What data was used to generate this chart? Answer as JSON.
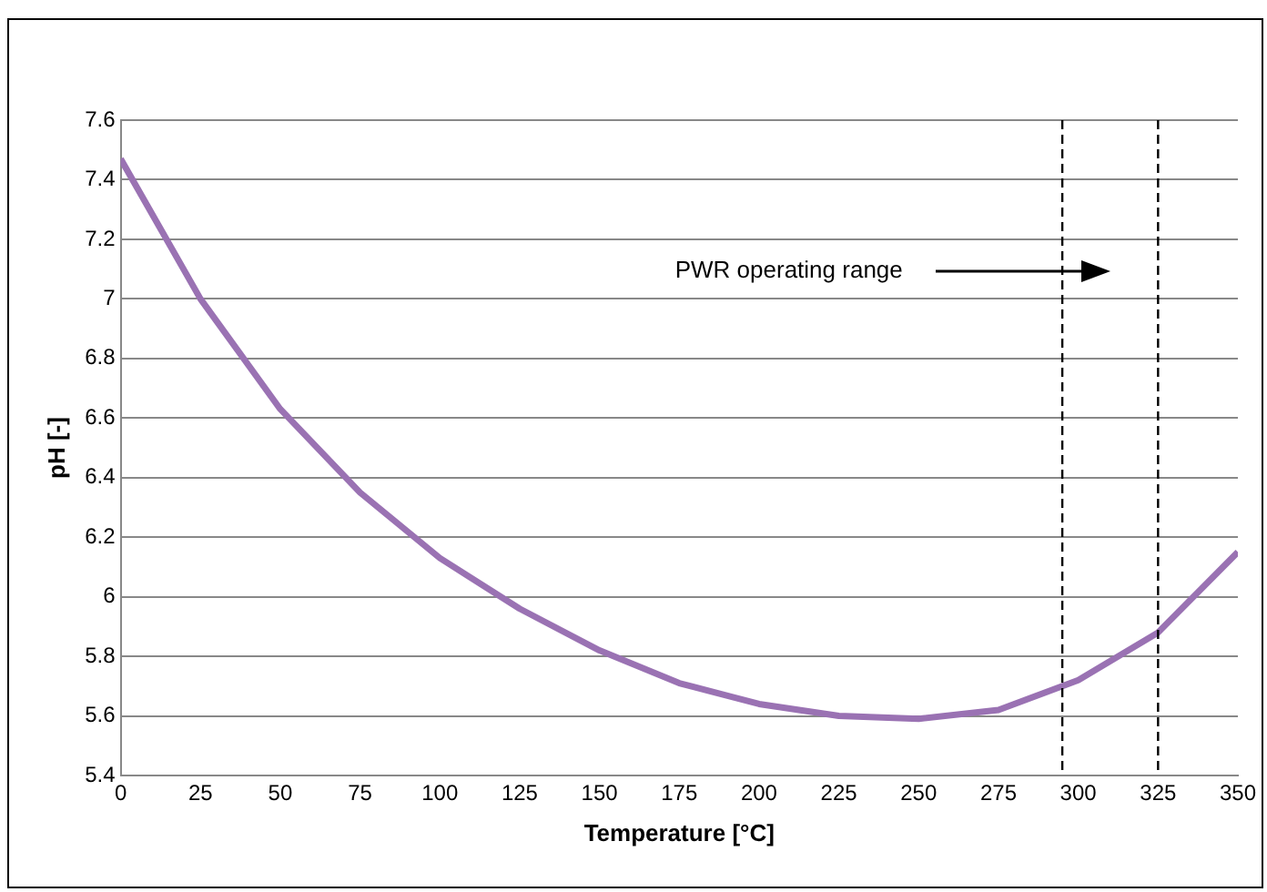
{
  "chart_data": {
    "type": "line",
    "xlabel": "Temperature [°C]",
    "ylabel": "pH [-]",
    "x": [
      0,
      25,
      50,
      75,
      100,
      125,
      150,
      175,
      200,
      225,
      250,
      275,
      300,
      325,
      350
    ],
    "series": [
      {
        "color": "#9a72b3",
        "values": [
          7.47,
          7.0,
          6.63,
          6.35,
          6.13,
          5.96,
          5.82,
          5.71,
          5.64,
          5.6,
          5.59,
          5.62,
          5.72,
          5.88,
          6.15
        ]
      }
    ],
    "xlim": [
      0,
      350
    ],
    "xticks": [
      0,
      25,
      50,
      75,
      100,
      125,
      150,
      175,
      200,
      225,
      250,
      275,
      300,
      325,
      350
    ],
    "ylim": [
      5.4,
      7.6
    ],
    "yticks": [
      5.4,
      5.6,
      5.8,
      6,
      6.2,
      6.4,
      6.6,
      6.8,
      7,
      7.2,
      7.4,
      7.6
    ],
    "grid": "y",
    "legend": false,
    "marker": "none",
    "line_style": "solid",
    "ref_lines": [
      {
        "axis": "x",
        "value": 295,
        "color": "#000000",
        "line_style": "dashed"
      },
      {
        "axis": "x",
        "value": 325,
        "color": "#000000",
        "line_style": "dashed"
      }
    ],
    "annotations": [
      "PWR operating range"
    ]
  }
}
